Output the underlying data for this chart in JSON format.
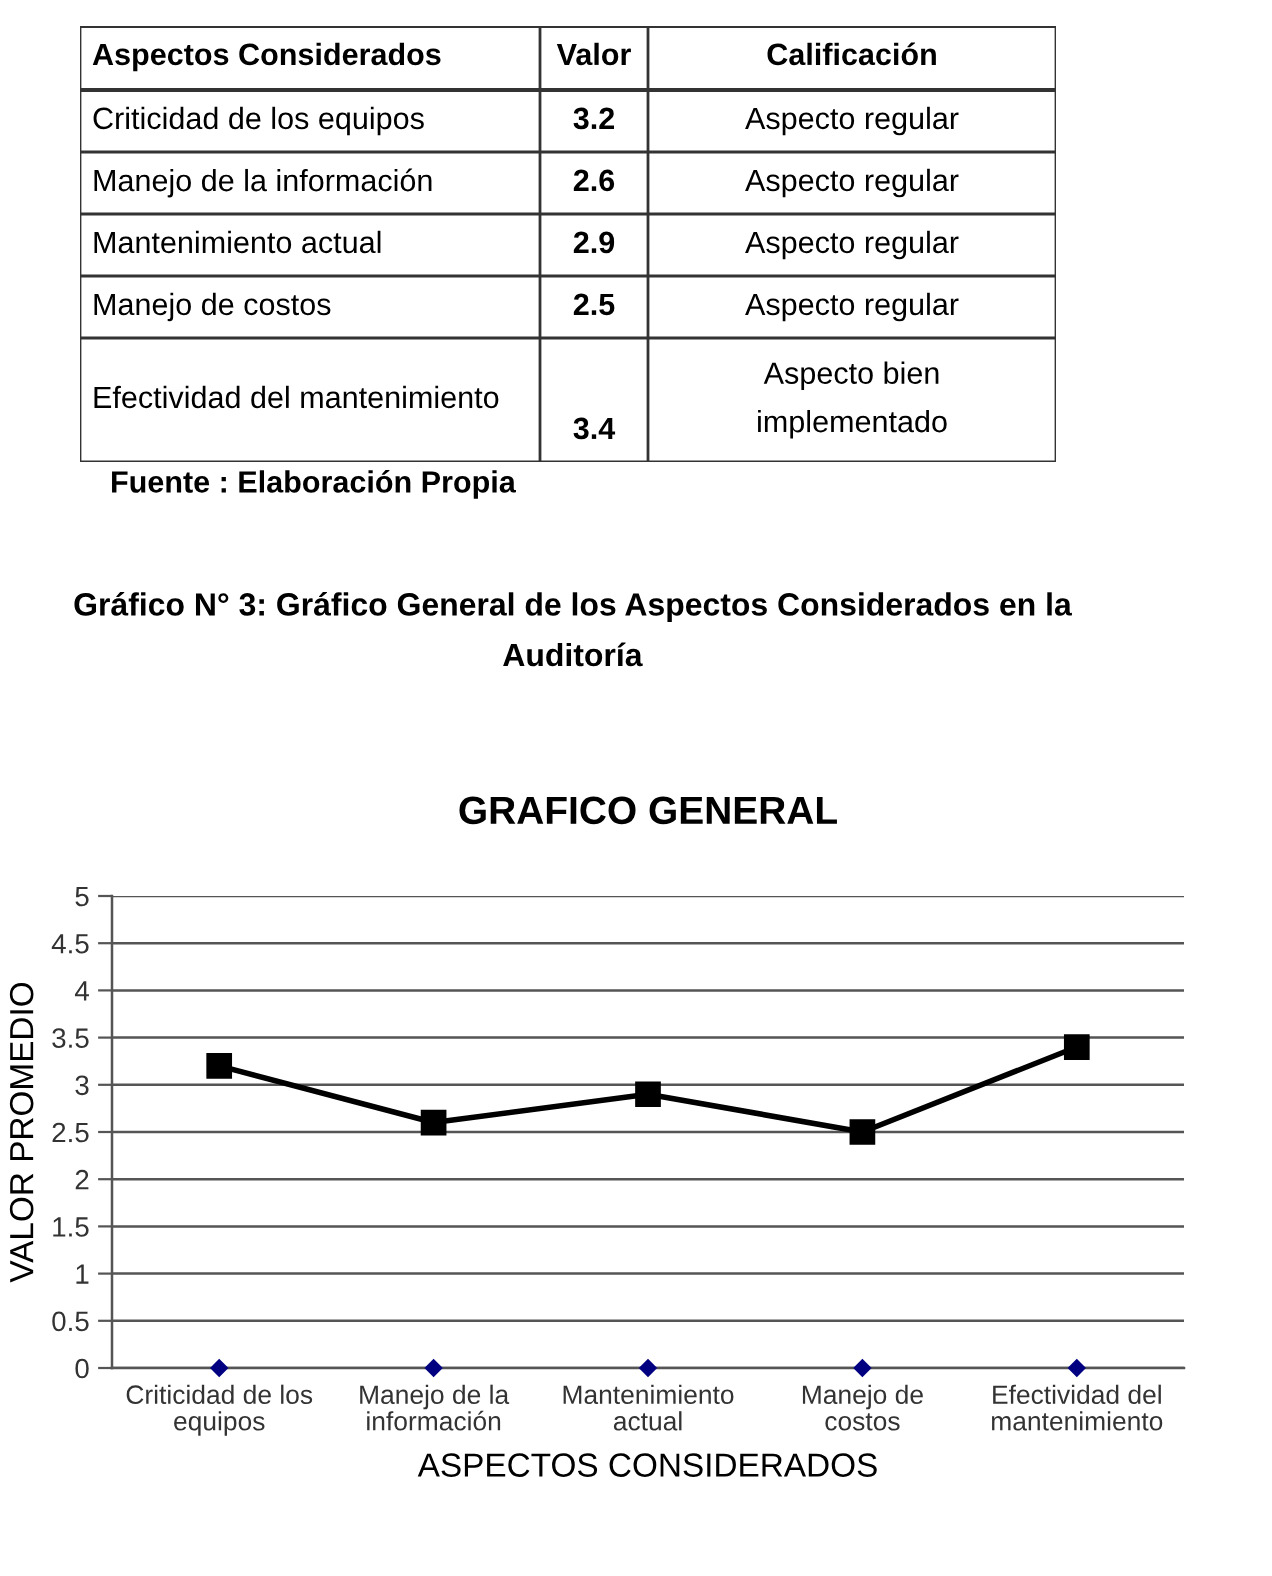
{
  "chart_data": [
    {
      "type": "other",
      "categories": [
        "Criticidad de los equipos",
        "Manejo de la información",
        "Mantenimiento actual",
        "Manejo de costos",
        "Efectividad del mantenimiento"
      ],
      "values": [
        3.2,
        2.6,
        2.9,
        2.5,
        3.4
      ],
      "data_labels": true,
      "annotations": [
        "Aspectos Considerados",
        "Valor",
        "Calificación",
        "Aspecto regular",
        "Aspecto regular",
        "Aspecto regular",
        "Aspecto regular",
        "Aspecto bien implementado",
        "Fuente : Elaboración Propia"
      ]
    },
    {
      "type": "line",
      "annotations": [
        "Gráfico N° 3: Gráfico General de los Aspectos Considerados en la Auditoría"
      ],
      "title": "GRAFICO GENERAL",
      "xlabel": "ASPECTOS CONSIDERADOS",
      "ylabel": "VALOR PROMEDIO",
      "categories": [
        "Criticidad de los equipos",
        "Manejo de la información",
        "Mantenimiento actual",
        "Manejo de costos",
        "Efectividad del mantenimiento"
      ],
      "series": [
        {
          "color": "#000000",
          "marker": "square",
          "values": [
            3.2,
            2.6,
            2.9,
            2.5,
            3.4
          ]
        },
        {
          "type": "scatter",
          "color": "#000080",
          "marker": "diamond",
          "values": [
            0,
            0,
            0,
            0,
            0
          ]
        }
      ],
      "ylim": [
        0,
        5
      ],
      "yticks": [
        0,
        0.5,
        1,
        1.5,
        2,
        2.5,
        3,
        3.5,
        4,
        4.5,
        5
      ],
      "grid": "y"
    }
  ]
}
